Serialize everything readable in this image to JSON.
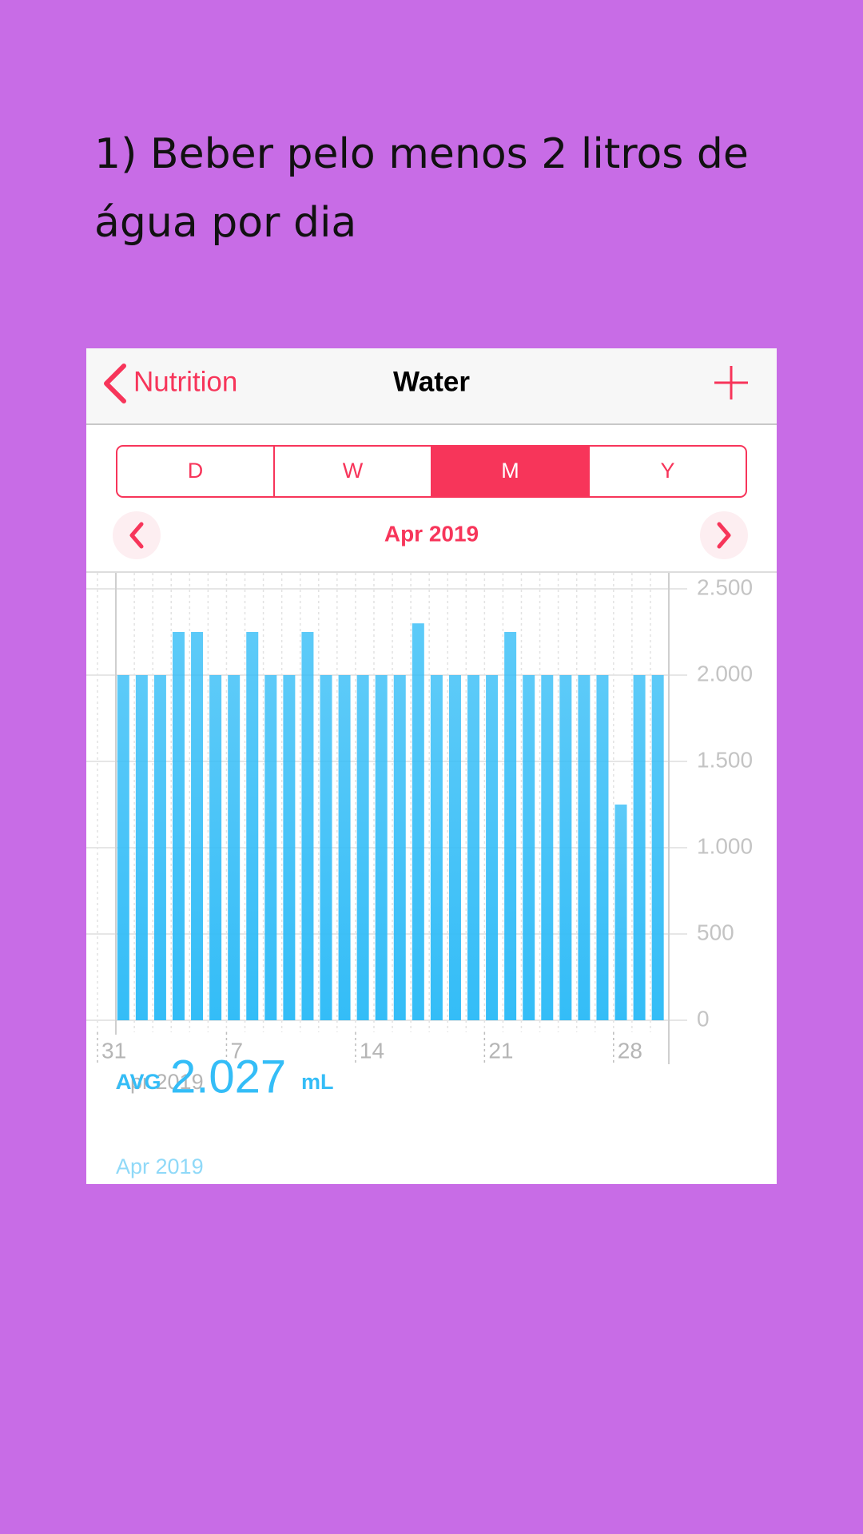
{
  "caption": "1) Beber pelo menos 2 litros de água por dia",
  "nav": {
    "back": "Nutrition",
    "title": "Water"
  },
  "segments": {
    "items": [
      "D",
      "W",
      "M",
      "Y"
    ],
    "selected": "M"
  },
  "period": "Apr 2019",
  "chart_data": {
    "type": "bar",
    "x": [
      1,
      2,
      3,
      4,
      5,
      6,
      7,
      8,
      9,
      10,
      11,
      12,
      13,
      14,
      15,
      16,
      17,
      18,
      19,
      20,
      21,
      22,
      23,
      24,
      25,
      26,
      27,
      28,
      29,
      30
    ],
    "values": [
      2000,
      2000,
      2000,
      2250,
      2250,
      2000,
      2000,
      2250,
      2000,
      2000,
      2250,
      2000,
      2000,
      2000,
      2000,
      2000,
      2300,
      2000,
      2000,
      2000,
      2000,
      2250,
      2000,
      2000,
      2000,
      2000,
      2000,
      1250,
      2000,
      2000
    ],
    "color": "#34bdf7",
    "xlim": [
      0,
      31
    ],
    "xticks": [
      {
        "value": 0,
        "label": "31"
      },
      7,
      14,
      21,
      28
    ],
    "xlabel": "Apr 2019",
    "ylim": [
      0,
      2500
    ],
    "yticks": [
      0,
      500,
      {
        "value": 1000,
        "label": "1.000"
      },
      {
        "value": 1500,
        "label": "1.500"
      },
      {
        "value": 2000,
        "label": "2.000"
      },
      {
        "value": 2500,
        "label": "2.500"
      }
    ],
    "grid": true
  },
  "summary": {
    "label": "AVG",
    "value": "2.027",
    "unit": "mL",
    "period": "Apr 2019"
  }
}
